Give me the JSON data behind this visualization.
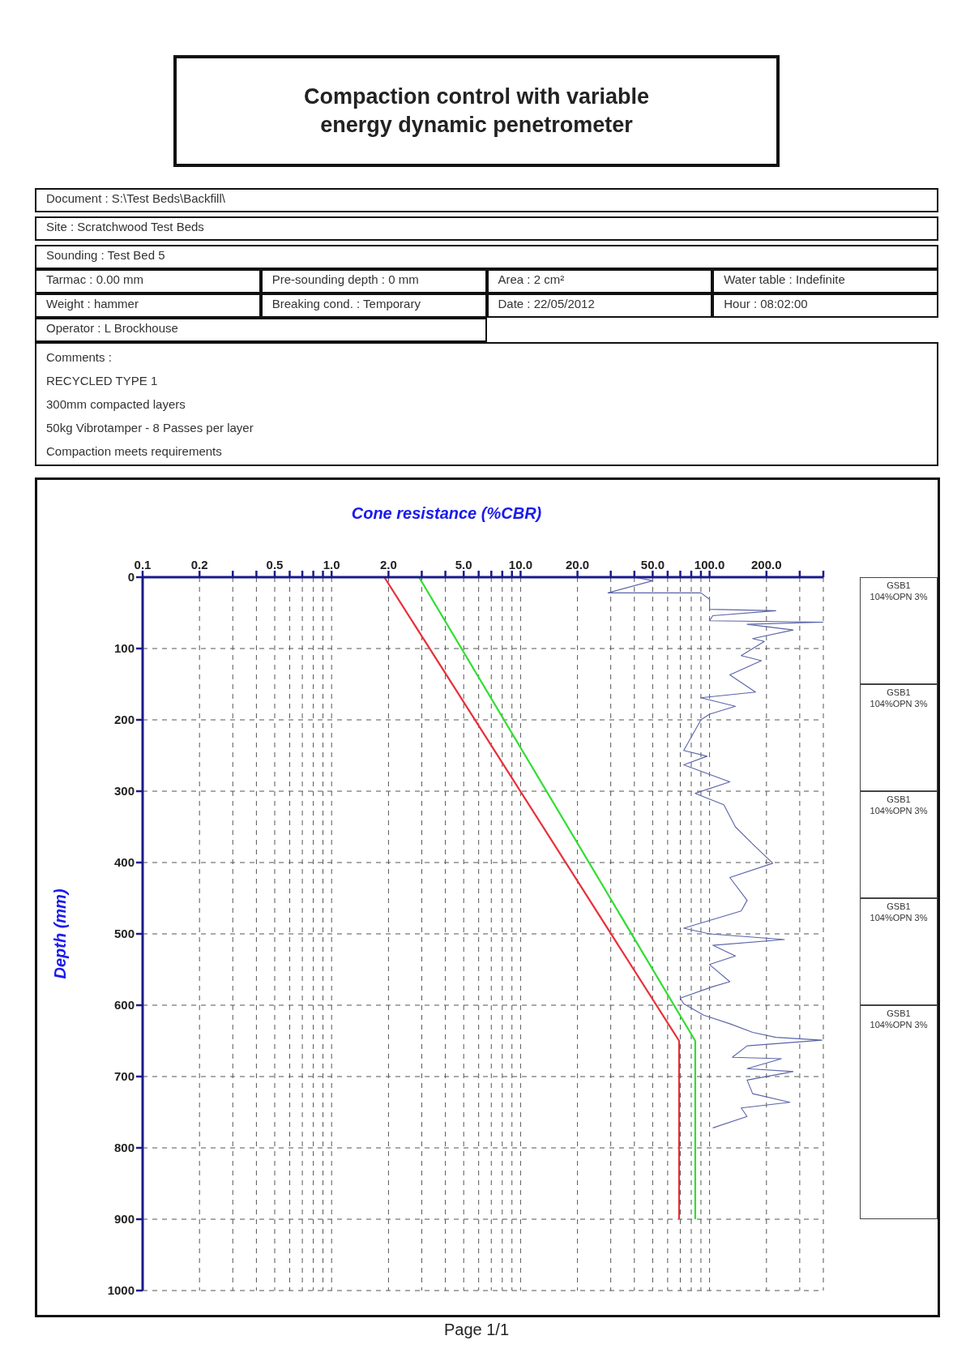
{
  "chart_data": {
    "type": "line",
    "title": "Compaction control with variable energy dynamic penetrometer",
    "xlabel": "Cone resistance (%CBR)",
    "ylabel": "Depth (mm)",
    "annotations": [
      "Document : S:\\Test Beds\\Backfill\\",
      "Site : Scratchwood Test Beds",
      "Sounding : Test Bed 5",
      "Tarmac :   0.00 mm",
      "Pre-sounding depth :      0 mm",
      "Area :      2 cm²",
      "Water table : Indefinite",
      "Weight : hammer",
      "Breaking cond. : Temporary",
      "Date : 22/05/2012",
      "Hour : 08:02:00",
      "Operator : L Brockhouse",
      "Comments :",
      "RECYCLED TYPE 1",
      "300mm compacted layers",
      "50kg Vibrotamper - 8 Passes per layer",
      "Compaction meets requirements",
      "Page 1/1",
      "GSB1\n104%OPN 3%",
      "GSB1\n104%OPN 3%",
      "GSB1\n104%OPN 3%",
      "GSB1\n104%OPN 3%",
      "GSB1\n104%OPN 3%"
    ],
    "log": "x",
    "grid": true,
    "xlim": [
      0.1,
      400
    ],
    "xticks": [
      0.1,
      0.2,
      {
        "value": 0.3,
        "label": null
      },
      {
        "value": 0.4,
        "label": null
      },
      0.5,
      {
        "value": 0.6,
        "label": null
      },
      {
        "value": 0.7,
        "label": null
      },
      {
        "value": 0.8,
        "label": null
      },
      {
        "value": 0.9,
        "label": null
      },
      {
        "value": 1,
        "label": "1.0"
      },
      {
        "value": 2,
        "label": "2.0"
      },
      {
        "value": 3,
        "label": null
      },
      {
        "value": 4,
        "label": null
      },
      {
        "value": 5,
        "label": "5.0"
      },
      {
        "value": 6,
        "label": null
      },
      {
        "value": 7,
        "label": null
      },
      {
        "value": 8,
        "label": null
      },
      {
        "value": 9,
        "label": null
      },
      {
        "value": 10,
        "label": "10.0"
      },
      {
        "value": 20,
        "label": "20.0"
      },
      {
        "value": 30,
        "label": null
      },
      {
        "value": 40,
        "label": null
      },
      {
        "value": 50,
        "label": "50.0"
      },
      {
        "value": 60,
        "label": null
      },
      {
        "value": 70,
        "label": null
      },
      {
        "value": 80,
        "label": null
      },
      {
        "value": 90,
        "label": null
      },
      {
        "value": 100,
        "label": "100.0"
      },
      {
        "value": 200,
        "label": "200.0"
      },
      {
        "value": 300,
        "label": null
      },
      {
        "value": 400,
        "label": null
      }
    ],
    "ylim": [
      1000,
      0
    ],
    "yticks": [
      0,
      100,
      200,
      300,
      400,
      500,
      600,
      700,
      800,
      900,
      1000
    ],
    "series": [
      {
        "color": "#e8303a",
        "x": [
          1.9,
          69,
          69
        ],
        "values": [
          0,
          650,
          900
        ]
      },
      {
        "color": "#33dd33",
        "x": [
          2.9,
          84,
          84
        ],
        "values": [
          0,
          650,
          900
        ]
      },
      {
        "color": "#5a64a8",
        "x": [
          40,
          50,
          29,
          90,
          100,
          100,
          224,
          104,
          100,
          400,
          158,
          277,
          169,
          195,
          147,
          188,
          128,
          175,
          90,
          137,
          100,
          90,
          73,
          97,
          73,
          128,
          84,
          119,
          137,
          169,
          216,
          128,
          158,
          147,
          73,
          100,
          249,
          104,
          137,
          100,
          128,
          104,
          70,
          73,
          93,
          128,
          169,
          224,
          393,
          158,
          132,
          240,
          158,
          277,
          158,
          169,
          266,
          147,
          158,
          104
        ],
        "values": [
          0,
          5,
          22,
          22,
          31,
          45,
          47,
          54,
          61,
          63,
          66,
          74,
          86,
          90,
          110,
          117,
          137,
          161,
          169,
          181,
          192,
          200,
          243,
          251,
          263,
          287,
          303,
          319,
          350,
          374,
          401,
          421,
          453,
          468,
          492,
          500,
          508,
          516,
          531,
          543,
          567,
          574,
          590,
          598,
          614,
          626,
          638,
          645,
          649,
          657,
          673,
          675,
          689,
          693,
          705,
          724,
          736,
          744,
          756,
          772
        ]
      }
    ]
  }
}
